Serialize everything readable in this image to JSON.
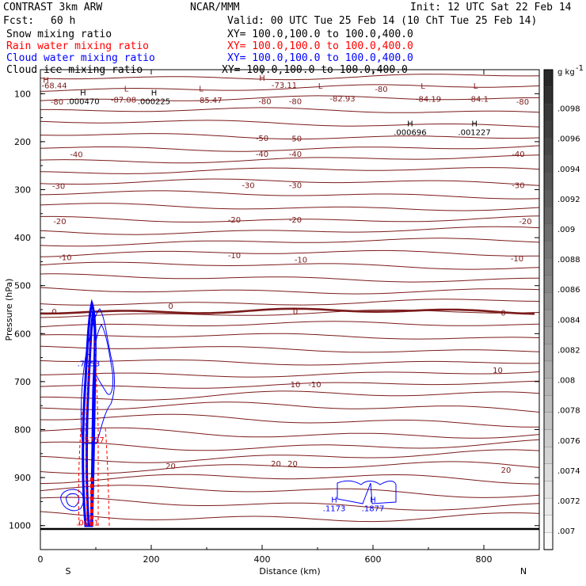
{
  "header": {
    "title": "CONTRAST  3km ARW",
    "center": "NCAR/MMM",
    "init": "Init: 12 UTC Sat 22 Feb 14",
    "fcst_label": "Fcst:",
    "fcst_value": "60 h",
    "valid": "Valid: 00 UTC Tue 25 Feb 14 (10 ChT Tue 25 Feb 14)"
  },
  "fields": [
    {
      "name": "Snow mixing ratio",
      "xy": "XY= 100.0,100.0 to 100.0,400.0",
      "color": "#000000"
    },
    {
      "name": "Rain water mixing ratio",
      "xy": "XY= 100.0,100.0 to 100.0,400.0",
      "color": "#ff0000"
    },
    {
      "name": "Cloud water mixing ratio",
      "xy": "XY= 100.0,100.0 to 100.0,400.0",
      "color": "#0000ff"
    },
    {
      "name": "Cloud ice mixing ratio",
      "xy": "XY= 100.0,100.0 to 100.0,400.0",
      "color": "#000000"
    }
  ],
  "chart_data": {
    "type": "contour",
    "xlabel": "Distance (km)",
    "ylabel": "Pressure (hPa)",
    "xlim": [
      0,
      900
    ],
    "ylim": [
      1050,
      50
    ],
    "x_ticks": [
      0,
      200,
      400,
      600,
      800
    ],
    "y_ticks": [
      100,
      200,
      300,
      400,
      500,
      600,
      700,
      800,
      900,
      1000
    ],
    "x_end_labels": {
      "left": "S",
      "right": "N"
    },
    "colorbar": {
      "unit": "g kg",
      "unit_exp": "-1",
      "ticks": [
        ".0098",
        ".0096",
        ".0094",
        ".0092",
        ".009",
        ".0088",
        ".0086",
        ".0084",
        ".0082",
        ".008",
        ".0078",
        ".0076",
        ".0074",
        ".0072",
        ".007"
      ]
    },
    "temperature_labels": [
      {
        "x": 25,
        "p": 82,
        "text": "-68.44"
      },
      {
        "x": 150,
        "p": 112,
        "text": "-87.08"
      },
      {
        "x": 305,
        "p": 113,
        "text": "-85.47"
      },
      {
        "x": 440,
        "p": 81,
        "text": "-73.11"
      },
      {
        "x": 545,
        "p": 109,
        "text": "-82.93"
      },
      {
        "x": 700,
        "p": 110,
        "text": "-84.19"
      },
      {
        "x": 790,
        "p": 110,
        "text": "-84.1"
      },
      {
        "x": 30,
        "p": 116,
        "text": "-80"
      },
      {
        "x": 405,
        "p": 115,
        "text": "-80"
      },
      {
        "x": 460,
        "p": 115,
        "text": "-80"
      },
      {
        "x": 615,
        "p": 90,
        "text": "-80"
      },
      {
        "x": 870,
        "p": 116,
        "text": "-80"
      },
      {
        "x": 400,
        "p": 192,
        "text": "-50"
      },
      {
        "x": 460,
        "p": 193,
        "text": "-50"
      },
      {
        "x": 65,
        "p": 226,
        "text": "-40"
      },
      {
        "x": 400,
        "p": 225,
        "text": "-40"
      },
      {
        "x": 460,
        "p": 225,
        "text": "-40"
      },
      {
        "x": 862,
        "p": 225,
        "text": "-40"
      },
      {
        "x": 33,
        "p": 292,
        "text": "-30"
      },
      {
        "x": 375,
        "p": 290,
        "text": "-30"
      },
      {
        "x": 460,
        "p": 290,
        "text": "-30"
      },
      {
        "x": 862,
        "p": 290,
        "text": "-30"
      },
      {
        "x": 35,
        "p": 365,
        "text": "-20"
      },
      {
        "x": 350,
        "p": 362,
        "text": "-20"
      },
      {
        "x": 460,
        "p": 362,
        "text": "-20"
      },
      {
        "x": 875,
        "p": 365,
        "text": "-20"
      },
      {
        "x": 45,
        "p": 440,
        "text": "-10"
      },
      {
        "x": 350,
        "p": 436,
        "text": "-10"
      },
      {
        "x": 470,
        "p": 445,
        "text": "-10"
      },
      {
        "x": 860,
        "p": 443,
        "text": "-10"
      },
      {
        "x": 25,
        "p": 553,
        "text": "0"
      },
      {
        "x": 235,
        "p": 542,
        "text": "0"
      },
      {
        "x": 460,
        "p": 553,
        "text": "0"
      },
      {
        "x": 835,
        "p": 556,
        "text": "0"
      },
      {
        "x": 825,
        "p": 675,
        "text": "10"
      },
      {
        "x": 460,
        "p": 705,
        "text": "10"
      },
      {
        "x": 495,
        "p": 705,
        "text": "-10"
      },
      {
        "x": 235,
        "p": 875,
        "text": "20"
      },
      {
        "x": 425,
        "p": 870,
        "text": "20"
      },
      {
        "x": 455,
        "p": 870,
        "text": "20"
      },
      {
        "x": 840,
        "p": 883,
        "text": "20"
      }
    ],
    "extrema": [
      {
        "x": 10,
        "p": 77,
        "mark": "H",
        "value": "",
        "color": "#8b1a1a"
      },
      {
        "x": 77,
        "p": 104,
        "mark": "H",
        "value": ".000470",
        "color": "#000000"
      },
      {
        "x": 155,
        "p": 95,
        "mark": "L",
        "value": "",
        "color": "#8b1a1a"
      },
      {
        "x": 205,
        "p": 104,
        "mark": "H",
        "value": ".000225",
        "color": "#000000"
      },
      {
        "x": 290,
        "p": 95,
        "mark": "L",
        "value": "",
        "color": "#8b1a1a"
      },
      {
        "x": 400,
        "p": 73,
        "mark": "H",
        "value": "",
        "color": "#8b1a1a"
      },
      {
        "x": 505,
        "p": 90,
        "mark": "L",
        "value": "",
        "color": "#8b1a1a"
      },
      {
        "x": 690,
        "p": 90,
        "mark": "L",
        "value": "",
        "color": "#8b1a1a"
      },
      {
        "x": 785,
        "p": 90,
        "mark": "L",
        "value": "",
        "color": "#8b1a1a"
      },
      {
        "x": 667,
        "p": 168,
        "mark": "H",
        "value": ".000696",
        "color": "#000000"
      },
      {
        "x": 783,
        "p": 168,
        "mark": "H",
        "value": ".001227",
        "color": "#000000"
      },
      {
        "x": 87,
        "p": 650,
        "mark": "H",
        "value": ".7653",
        "color": "#0000ff"
      },
      {
        "x": 95,
        "p": 827,
        "mark": "",
        "value": ".5757",
        "color": "#ff0000"
      },
      {
        "x": 85,
        "p": 1000,
        "mark": "",
        "value": ".0011",
        "color": "#ff0000"
      },
      {
        "x": 530,
        "p": 952,
        "mark": "H",
        "value": ".1173",
        "color": "#0000ff"
      },
      {
        "x": 600,
        "p": 952,
        "mark": "H",
        "value": ".1877",
        "color": "#0000ff"
      }
    ]
  }
}
